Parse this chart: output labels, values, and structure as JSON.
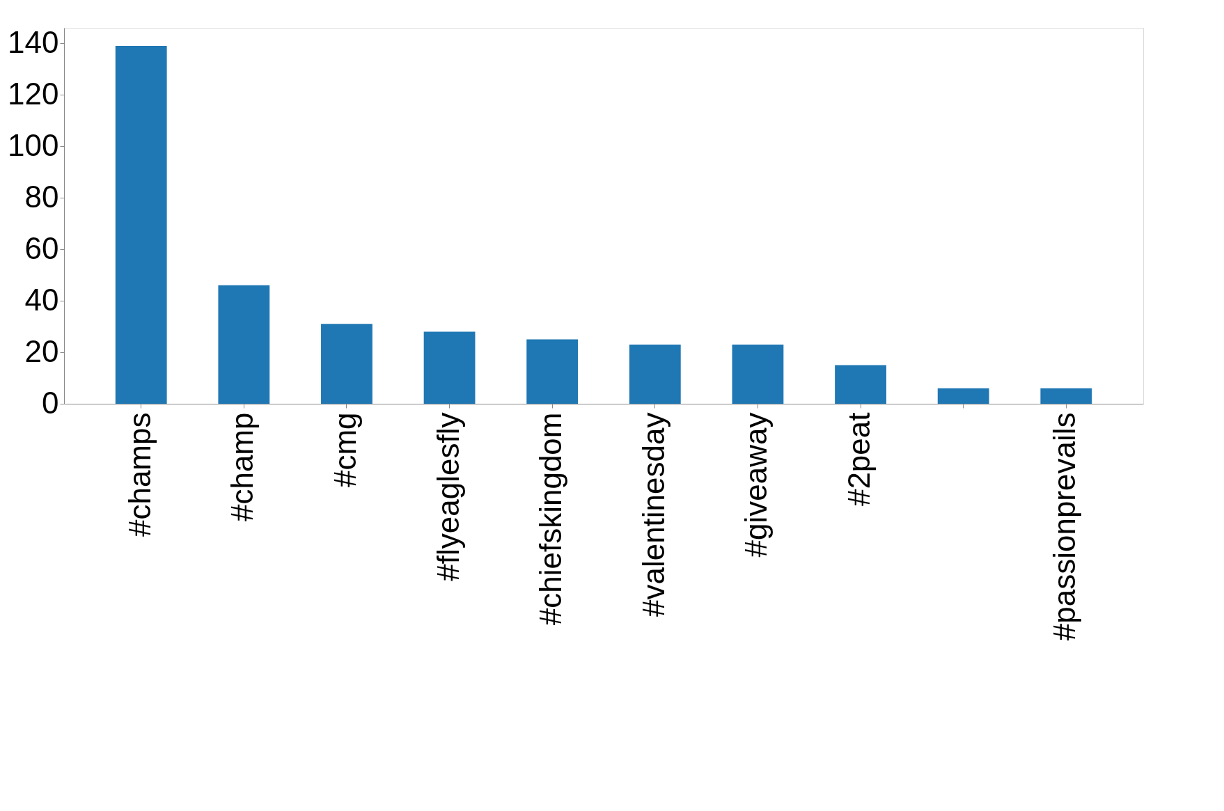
{
  "chart_data": {
    "type": "bar",
    "categories": [
      "#champs",
      "#champ",
      "#cmg",
      "#flyeaglesfly",
      "#chiefskingdom",
      "#valentinesday",
      "#giveaway",
      "#2peat",
      null,
      "#passionprevails"
    ],
    "values": [
      139,
      46,
      31,
      28,
      25,
      23,
      23,
      15,
      6,
      6
    ],
    "color": "#1f77b4",
    "ylim": [
      0,
      146
    ],
    "yticks": [
      0,
      20,
      40,
      60,
      80,
      100,
      120,
      140
    ],
    "grid": false
  }
}
